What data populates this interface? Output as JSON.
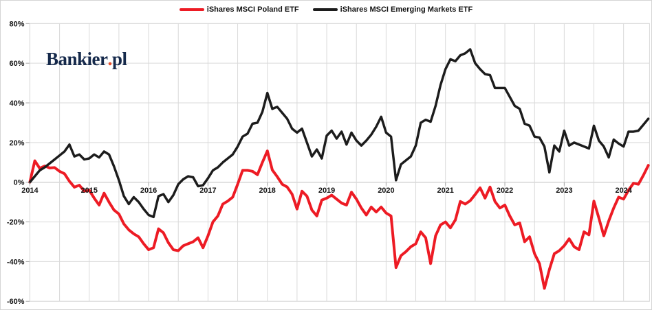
{
  "logo": {
    "text": "Bankier",
    "dot": ".",
    "suffix": "pl",
    "color": "#15294b",
    "dot_color": "#e8502d"
  },
  "legend": {
    "items": [
      {
        "label": "iShares MSCI Poland ETF",
        "color": "#ed1b24"
      },
      {
        "label": "iShares MSCI Emerging Markets ETF",
        "color": "#1c1c1c"
      }
    ]
  },
  "chart_data": {
    "type": "line",
    "x_unit": "month",
    "x_range": [
      "2014-01",
      "2024-06"
    ],
    "categories_years": [
      "2014",
      "2015",
      "2016",
      "2017",
      "2018",
      "2019",
      "2020",
      "2021",
      "2022",
      "2023",
      "2024"
    ],
    "ylim": [
      -60,
      80
    ],
    "ytick_step": 20,
    "ytick_labels": [
      "80%",
      "60%",
      "40%",
      "20%",
      "0%",
      "-20%",
      "-40%",
      "-60%"
    ],
    "grid": true,
    "legend_position": "top-center",
    "gridline_color": "#d9d9d9",
    "zero_axis_color": "#bfbfbf",
    "tick_color": "#a6a6a6",
    "series": [
      {
        "name": "iShares MSCI Poland ETF",
        "color": "#ed1b24",
        "stroke_width": 4,
        "values": [
          0,
          10.8,
          7,
          8.2,
          7.2,
          7.4,
          5.5,
          4.3,
          0.5,
          -2.5,
          -1.5,
          -4.5,
          -4,
          -8,
          -11.5,
          -5.5,
          -10,
          -14,
          -16,
          -21,
          -24,
          -26,
          -27.5,
          -31,
          -34,
          -33,
          -23.5,
          -25.5,
          -30.5,
          -34,
          -34.5,
          -32,
          -31,
          -30,
          -28,
          -33,
          -27,
          -20,
          -17,
          -11,
          -9.5,
          -7.5,
          -1,
          6,
          6,
          5.5,
          3.8,
          10,
          15.8,
          6.2,
          2.8,
          -1,
          -2.4,
          -6,
          -13.5,
          -4.5,
          -7,
          -14,
          -17,
          -9,
          -8,
          -6.5,
          -8.5,
          -10.5,
          -11.5,
          -5,
          -8.5,
          -13,
          -16.5,
          -12.5,
          -15,
          -12.5,
          -15.5,
          -17,
          -43,
          -37,
          -35,
          -32.5,
          -31,
          -25,
          -28,
          -41,
          -27,
          -21.5,
          -20,
          -23,
          -19,
          -9.7,
          -11,
          -9.3,
          -6.2,
          -2.8,
          -8,
          -2.4,
          -9.7,
          -13,
          -11.5,
          -17,
          -21.5,
          -20.5,
          -30,
          -27.5,
          -36,
          -41,
          -53.5,
          -44,
          -36,
          -34.5,
          -32,
          -28.5,
          -32.5,
          -34,
          -25,
          -26.5,
          -9.5,
          -18,
          -27,
          -19.5,
          -13,
          -7.5,
          -8.5,
          -4,
          -0.5,
          -1,
          3.5,
          8.5
        ]
      },
      {
        "name": "iShares MSCI Emerging Markets ETF",
        "color": "#1c1c1c",
        "stroke_width": 3.5,
        "values": [
          0,
          3,
          6,
          7.5,
          9.5,
          11.5,
          13.5,
          15.5,
          19,
          13,
          14,
          11.5,
          12,
          14,
          12.5,
          15.5,
          14,
          8,
          1,
          -7,
          -11,
          -7.5,
          -10,
          -13.5,
          -16.5,
          -17.5,
          -7,
          -6,
          -10,
          -6.5,
          -1,
          1.5,
          3,
          2.5,
          -2,
          -1.5,
          2,
          6,
          7.5,
          10,
          12,
          14,
          18,
          23,
          24.5,
          29.5,
          30,
          35.5,
          45,
          37,
          38,
          35,
          32,
          27,
          25,
          27,
          20,
          13,
          16.5,
          12,
          23.5,
          26,
          22,
          25.5,
          19,
          25,
          21,
          18.5,
          21,
          24,
          28,
          33,
          25,
          23,
          1,
          9,
          11,
          13,
          18.5,
          30,
          31.5,
          30.5,
          38.5,
          49,
          57,
          62,
          61,
          64,
          65,
          67,
          60,
          57,
          54.5,
          54,
          47.5,
          47.5,
          47.5,
          43,
          38.5,
          37,
          29.5,
          28.5,
          23,
          22.5,
          18,
          5,
          18.5,
          15.5,
          26,
          18.5,
          20,
          19,
          18,
          17,
          28.5,
          21,
          18,
          12.5,
          21.5,
          19.5,
          18,
          25.5,
          25.5,
          26,
          29,
          32
        ]
      }
    ]
  }
}
